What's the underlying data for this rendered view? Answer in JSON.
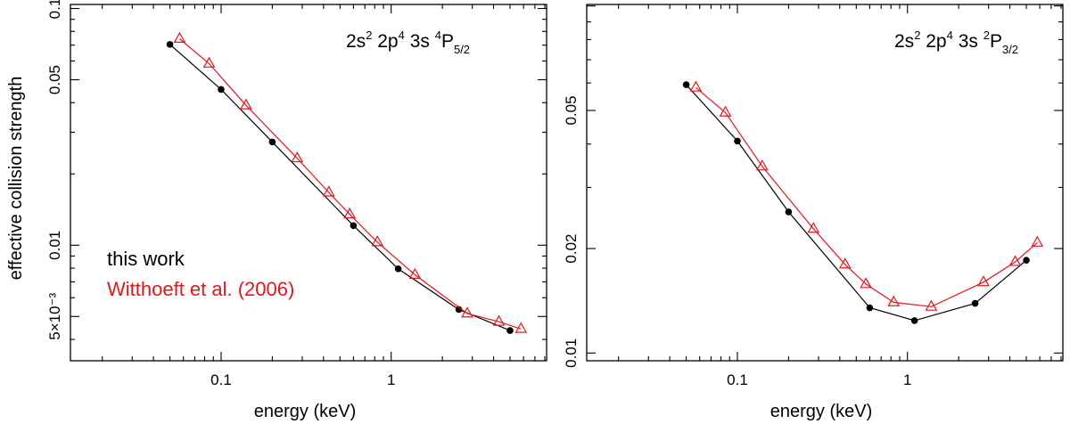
{
  "colors": {
    "this_work": "#000000",
    "witthoeft": "#e8141c"
  },
  "ylabel": "effective collision strength",
  "legend": {
    "this_work": "this work",
    "witthoeft": "Witthoeft et al. (2006)"
  },
  "chart_data": [
    {
      "type": "line",
      "xscale": "log",
      "yscale": "log",
      "title_parts": {
        "base": "2s",
        "s1": "2",
        "mid1": " 2p",
        "s2": "4",
        "mid2": " 3s ",
        "pre": "4",
        "term": "P",
        "sub": "5/2"
      },
      "xlabel": "energy (keV)",
      "xlim": [
        0.013,
        8.2
      ],
      "ylim": [
        0.00325,
        0.104
      ],
      "xticks": [
        {
          "value": 0.1,
          "label": "0.1"
        },
        {
          "value": 1,
          "label": "1"
        }
      ],
      "yticks": [
        {
          "value": 0.1,
          "label": "0.1"
        },
        {
          "value": 0.05,
          "label": "0.05"
        },
        {
          "value": 0.01,
          "label": "0.01"
        },
        {
          "value": 0.005,
          "label": "5×10⁻³"
        }
      ],
      "series": [
        {
          "name": "this work",
          "marker": "dot",
          "x": [
            0.05,
            0.1,
            0.2,
            0.6,
            1.1,
            2.5,
            5.0
          ],
          "y": [
            0.0705,
            0.0455,
            0.0273,
            0.0121,
            0.00795,
            0.00535,
            0.00436
          ]
        },
        {
          "name": "Witthoeft et al. (2006)",
          "marker": "triangle",
          "x": [
            0.057,
            0.085,
            0.14,
            0.28,
            0.43,
            0.57,
            0.83,
            1.38,
            2.8,
            4.3,
            5.8
          ],
          "y": [
            0.0745,
            0.0585,
            0.039,
            0.0233,
            0.0167,
            0.0135,
            0.0103,
            0.0075,
            0.00515,
            0.00475,
            0.00443
          ]
        }
      ]
    },
    {
      "type": "line",
      "xscale": "log",
      "yscale": "log",
      "title_parts": {
        "base": "2s",
        "s1": "2",
        "mid1": " 2p",
        "s2": "4",
        "mid2": " 3s ",
        "pre": "2",
        "term": "P",
        "sub": "3/2"
      },
      "xlabel": "energy (keV)",
      "xlim": [
        0.013,
        8.2
      ],
      "ylim": [
        0.0095,
        0.101
      ],
      "xticks": [
        {
          "value": 0.1,
          "label": "0.1"
        },
        {
          "value": 1,
          "label": "1"
        }
      ],
      "yticks": [
        {
          "value": 0.05,
          "label": "0.05"
        },
        {
          "value": 0.02,
          "label": "0.02"
        },
        {
          "value": 0.01,
          "label": "0.01"
        }
      ],
      "series": [
        {
          "name": "this work",
          "marker": "dot",
          "x": [
            0.05,
            0.1,
            0.2,
            0.6,
            1.1,
            2.5,
            5.0
          ],
          "y": [
            0.0593,
            0.0408,
            0.0255,
            0.0135,
            0.0124,
            0.0139,
            0.0185
          ]
        },
        {
          "name": "Witthoeft et al. (2006)",
          "marker": "triangle",
          "x": [
            0.057,
            0.085,
            0.14,
            0.28,
            0.43,
            0.57,
            0.83,
            1.38,
            2.8,
            4.3,
            5.8
          ],
          "y": [
            0.0582,
            0.0493,
            0.0345,
            0.0228,
            0.018,
            0.0158,
            0.014,
            0.0136,
            0.016,
            0.0183,
            0.0208
          ]
        }
      ]
    }
  ]
}
